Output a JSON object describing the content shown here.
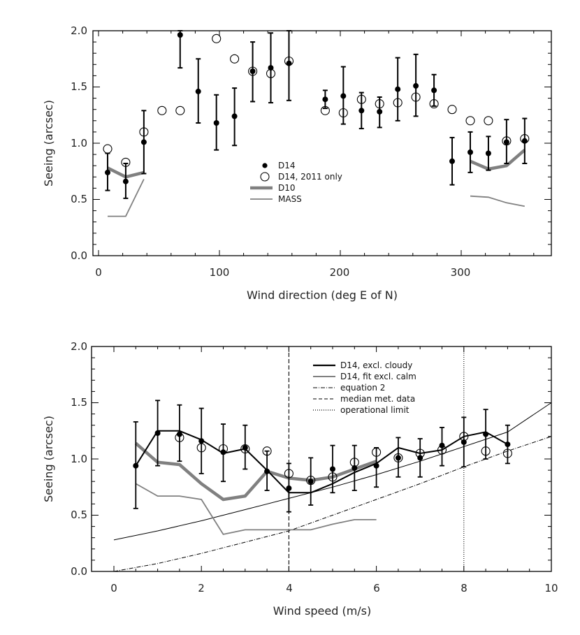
{
  "chart_data": [
    {
      "type": "scatter",
      "xlabel": "Wind direction (deg E of N)",
      "ylabel": "Seeing (arcsec)",
      "xlim": [
        -10,
        370
      ],
      "ylim": [
        0,
        2.0
      ],
      "xticks": [
        0,
        100,
        200,
        300
      ],
      "yticks": [
        0.0,
        0.5,
        1.0,
        1.5,
        2.0
      ],
      "xtick_labels": [
        "0",
        "100",
        "200",
        "300"
      ],
      "ytick_labels": [
        "0.0",
        "0.5",
        "1.0",
        "1.5",
        "2.0"
      ],
      "legend": {
        "position": "center",
        "entries": [
          {
            "label": "D14",
            "style": "filled-circle"
          },
          {
            "label": "D14, 2011 only",
            "style": "open-circle"
          },
          {
            "label": "D10",
            "style": "thick-gray-line"
          },
          {
            "label": "MASS",
            "style": "thin-gray-line"
          }
        ]
      },
      "series": [
        {
          "name": "D14",
          "x": [
            7.5,
            22.5,
            37.5,
            67.5,
            82.5,
            97.5,
            112.5,
            127.5,
            142.5,
            157.5,
            187.5,
            202.5,
            217.5,
            232.5,
            247.5,
            262.5,
            277.5,
            292.5,
            307.5,
            322.5,
            337.5,
            352.5
          ],
          "y": [
            0.74,
            0.66,
            1.01,
            1.98,
            1.46,
            1.18,
            1.24,
            1.64,
            1.67,
            1.71,
            1.39,
            1.42,
            1.29,
            1.28,
            1.48,
            1.51,
            1.47,
            0.84,
            0.92,
            0.91,
            1.01,
            1.02
          ],
          "yerr_low": [
            0.58,
            0.51,
            0.73,
            1.67,
            1.18,
            0.94,
            0.98,
            1.37,
            1.36,
            1.38,
            1.31,
            1.17,
            1.13,
            1.14,
            1.2,
            1.24,
            1.33,
            0.63,
            0.74,
            0.76,
            0.82,
            0.82
          ],
          "yerr_high": [
            0.91,
            0.82,
            1.29,
            2.0,
            1.75,
            1.43,
            1.49,
            1.9,
            1.98,
            2.0,
            1.47,
            1.68,
            1.45,
            1.41,
            1.76,
            1.79,
            1.61,
            1.05,
            1.1,
            1.06,
            1.21,
            1.22
          ]
        },
        {
          "name": "D14, 2011 only",
          "x": [
            7.5,
            22.5,
            37.5,
            52.5,
            67.5,
            97.5,
            112.5,
            127.5,
            142.5,
            157.5,
            187.5,
            202.5,
            217.5,
            232.5,
            247.5,
            262.5,
            277.5,
            292.5,
            307.5,
            322.5,
            337.5,
            352.5
          ],
          "y": [
            0.95,
            0.83,
            1.1,
            1.29,
            1.29,
            1.93,
            1.75,
            1.64,
            1.62,
            1.73,
            1.29,
            1.27,
            1.39,
            1.35,
            1.36,
            1.41,
            1.35,
            1.3,
            1.2,
            1.2,
            1.02,
            1.04
          ]
        },
        {
          "name": "D10",
          "segments": [
            {
              "x": [
                7.5,
                22.5,
                37.5
              ],
              "y": [
                0.78,
                0.7,
                0.74
              ]
            },
            {
              "x": [
                307.5,
                322.5,
                337.5,
                352.5
              ],
              "y": [
                0.84,
                0.77,
                0.8,
                0.94
              ]
            }
          ]
        },
        {
          "name": "MASS",
          "segments": [
            {
              "x": [
                7.5,
                22.5,
                37.5
              ],
              "y": [
                0.35,
                0.35,
                0.68
              ]
            },
            {
              "x": [
                307.5,
                322.5,
                337.5,
                352.5
              ],
              "y": [
                0.53,
                0.52,
                0.47,
                0.44
              ]
            }
          ]
        }
      ]
    },
    {
      "type": "line",
      "xlabel": "Wind speed (m/s)",
      "ylabel": "Seeing (arcsec)",
      "xlim": [
        -0.5,
        10
      ],
      "ylim": [
        0,
        2.0
      ],
      "xticks": [
        0,
        2,
        4,
        6,
        8,
        10
      ],
      "yticks": [
        0.0,
        0.5,
        1.0,
        1.5,
        2.0
      ],
      "xtick_labels": [
        "0",
        "2",
        "4",
        "6",
        "8",
        "10"
      ],
      "ytick_labels": [
        "0.0",
        "0.5",
        "1.0",
        "1.5",
        "2.0"
      ],
      "legend": {
        "position": "top-right",
        "entries": [
          {
            "label": "D14, excl. cloudy",
            "style": "thick-line"
          },
          {
            "label": "D14, fit excl. calm",
            "style": "thin-line"
          },
          {
            "label": "equation 2",
            "style": "dash-dot"
          },
          {
            "label": "median met. data",
            "style": "dashed"
          },
          {
            "label": "operational limit",
            "style": "dotted"
          }
        ]
      },
      "vlines": [
        {
          "name": "median met. data",
          "x": 4,
          "style": "dashed"
        },
        {
          "name": "operational limit",
          "x": 8,
          "style": "dotted"
        }
      ],
      "series": [
        {
          "name": "D14 points",
          "x": [
            0.5,
            1.0,
            1.5,
            2.0,
            2.5,
            3.0,
            3.5,
            4.0,
            4.5,
            5.0,
            5.5,
            6.0,
            6.5,
            7.0,
            7.5,
            8.0,
            8.5,
            9.0
          ],
          "y": [
            0.94,
            1.23,
            1.22,
            1.16,
            1.06,
            1.1,
            0.89,
            0.74,
            0.8,
            0.91,
            0.92,
            0.94,
            1.01,
            1.01,
            1.12,
            1.15,
            1.22,
            1.13
          ],
          "yerr_low": [
            0.56,
            0.94,
            0.98,
            0.87,
            0.8,
            0.91,
            0.72,
            0.53,
            0.59,
            0.7,
            0.72,
            0.75,
            0.84,
            0.84,
            0.94,
            0.93,
            1.0,
            0.96
          ],
          "yerr_high": [
            1.33,
            1.52,
            1.48,
            1.45,
            1.31,
            1.3,
            1.07,
            0.96,
            1.01,
            1.12,
            1.12,
            1.1,
            1.19,
            1.18,
            1.28,
            1.37,
            1.44,
            1.3
          ]
        },
        {
          "name": "D14, 2011 only",
          "x": [
            1.5,
            2.0,
            2.5,
            3.0,
            3.5,
            4.0,
            4.5,
            5.0,
            5.5,
            6.0,
            6.5,
            7.0,
            7.5,
            8.0,
            8.5,
            9.0
          ],
          "y": [
            1.19,
            1.1,
            1.09,
            1.09,
            1.07,
            0.87,
            0.81,
            0.84,
            0.97,
            1.06,
            1.01,
            1.05,
            1.08,
            1.2,
            1.07,
            1.05
          ]
        },
        {
          "name": "D14, excl. cloudy",
          "x": [
            0.5,
            1.0,
            1.5,
            2.0,
            2.5,
            3.0,
            3.5,
            4.0,
            4.5,
            5.0,
            5.5,
            6.0,
            6.5,
            7.0,
            7.5,
            8.0,
            8.5,
            9.0
          ],
          "y": [
            0.94,
            1.25,
            1.25,
            1.17,
            1.05,
            1.09,
            0.9,
            0.7,
            0.7,
            0.78,
            0.88,
            0.96,
            1.1,
            1.05,
            1.08,
            1.2,
            1.24,
            1.13
          ]
        },
        {
          "name": "D14, fit excl. calm",
          "x": [
            0,
            1,
            2,
            3,
            4,
            5,
            6,
            7,
            8,
            9,
            10
          ],
          "y": [
            0.28,
            0.36,
            0.45,
            0.55,
            0.65,
            0.75,
            0.86,
            0.98,
            1.11,
            1.24,
            1.5
          ]
        },
        {
          "name": "equation 2",
          "x": [
            0,
            1,
            2,
            3,
            4,
            5,
            6,
            7,
            8,
            9,
            10
          ],
          "y": [
            0.0,
            0.07,
            0.16,
            0.26,
            0.36,
            0.5,
            0.64,
            0.78,
            0.93,
            1.07,
            1.2
          ]
        },
        {
          "name": "D10",
          "x": [
            0.5,
            1.0,
            1.5,
            2.0,
            2.5,
            3.0,
            3.5,
            4.0,
            4.5,
            5.0,
            5.5,
            6.0
          ],
          "y": [
            1.14,
            0.97,
            0.95,
            0.78,
            0.64,
            0.67,
            0.89,
            0.83,
            0.81,
            0.84,
            0.91,
            0.98
          ]
        },
        {
          "name": "MASS",
          "x": [
            0.5,
            1.0,
            1.5,
            2.0,
            2.5,
            3.0,
            3.5,
            4.0,
            4.5,
            5.0,
            5.5,
            6.0
          ],
          "y": [
            0.78,
            0.67,
            0.67,
            0.64,
            0.33,
            0.37,
            0.37,
            0.37,
            0.37,
            0.42,
            0.46,
            0.46
          ]
        }
      ]
    }
  ]
}
